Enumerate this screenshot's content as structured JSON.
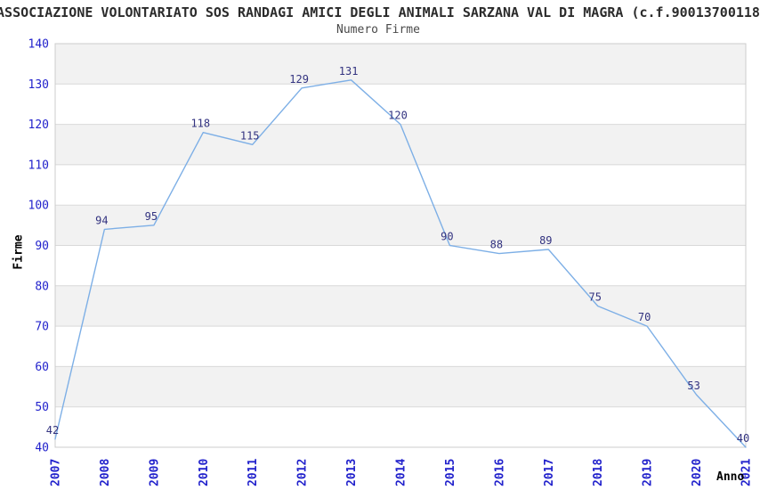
{
  "chart_data": {
    "type": "line",
    "title": "ASSOCIAZIONE VOLONTARIATO SOS RANDAGI AMICI DEGLI ANIMALI SARZANA VAL DI MAGRA (c.f.90013700118",
    "subtitle": "Numero Firme",
    "xlabel": "Anno",
    "ylabel": "Firme",
    "categories": [
      "2007",
      "2008",
      "2009",
      "2010",
      "2011",
      "2012",
      "2013",
      "2014",
      "2015",
      "2016",
      "2017",
      "2018",
      "2019",
      "2020",
      "2021"
    ],
    "values": [
      42,
      94,
      95,
      118,
      115,
      129,
      131,
      120,
      90,
      88,
      89,
      75,
      70,
      53,
      40
    ],
    "ylim": [
      40,
      140
    ],
    "ytick_step": 10,
    "yticks": [
      140,
      130,
      120,
      110,
      100,
      90,
      80,
      70,
      60,
      50,
      40
    ],
    "grid": "horizontal-lines-with-alternating-bands",
    "legend": "none",
    "data_labels_visible": true,
    "colors": {
      "line": "#7dafe6",
      "tick_labels": "#2222cc",
      "data_labels": "#333380",
      "band_fill": "#f2f2f2",
      "grid_line": "#d9d9d9",
      "plot_border": "#cccccc",
      "title": "#2b2b2b",
      "subtitle": "#4a4a4a",
      "axis_titles": "#000000"
    }
  }
}
